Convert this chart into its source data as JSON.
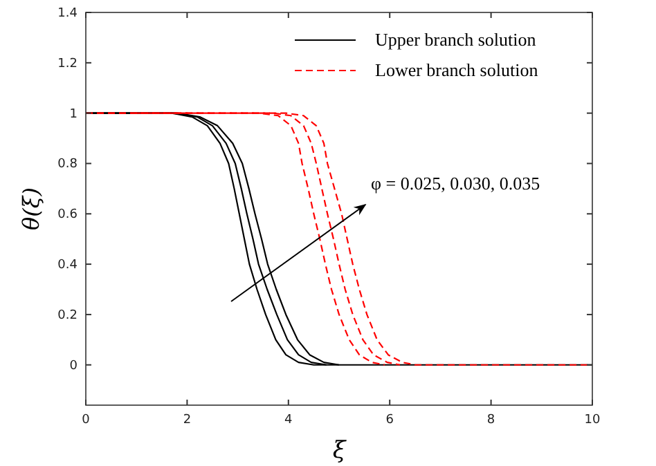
{
  "chart_data": {
    "type": "line",
    "xlabel": "ξ",
    "ylabel": "θ(ξ)",
    "xlim": [
      0,
      10
    ],
    "ylim": [
      -0.16,
      1.4
    ],
    "xticks": [
      0,
      2,
      4,
      6,
      8,
      10
    ],
    "yticks": [
      0,
      0.2,
      0.4,
      0.6,
      0.8,
      1,
      1.2,
      1.4
    ],
    "grid": false,
    "legend": "top right",
    "marker": "none",
    "annotations": [
      "φ = 0.025, 0.030, 0.035"
    ],
    "series": [
      {
        "name": "Upper branch solution",
        "color": "#000000",
        "line_style": "solid",
        "x": [
          0,
          1.7,
          2.1,
          2.4,
          2.65,
          2.82,
          2.93,
          3.03,
          3.13,
          3.23,
          3.38,
          3.55,
          3.75,
          3.95,
          4.2,
          4.5,
          10
        ],
        "values": [
          1,
          1,
          0.985,
          0.95,
          0.88,
          0.8,
          0.7,
          0.6,
          0.5,
          0.4,
          0.3,
          0.2,
          0.1,
          0.04,
          0.01,
          0,
          0
        ]
      },
      {
        "color": "#000000",
        "line_style": "solid",
        "x": [
          0,
          1.75,
          2.2,
          2.5,
          2.77,
          2.95,
          3.07,
          3.18,
          3.3,
          3.41,
          3.58,
          3.77,
          3.98,
          4.2,
          4.45,
          4.75
        ],
        "values": [
          1,
          1,
          0.985,
          0.95,
          0.88,
          0.8,
          0.7,
          0.6,
          0.5,
          0.4,
          0.3,
          0.2,
          0.1,
          0.04,
          0.01,
          0
        ]
      },
      {
        "color": "#000000",
        "line_style": "solid",
        "x": [
          0,
          1.8,
          2.25,
          2.6,
          2.9,
          3.09,
          3.22,
          3.34,
          3.47,
          3.59,
          3.76,
          3.95,
          4.18,
          4.42,
          4.7,
          5
        ],
        "values": [
          1,
          1,
          0.985,
          0.95,
          0.88,
          0.8,
          0.7,
          0.6,
          0.5,
          0.4,
          0.3,
          0.2,
          0.1,
          0.04,
          0.01,
          0
        ]
      },
      {
        "name": "Lower branch solution",
        "color": "#ff0000",
        "line_style": "dashed",
        "x": [
          0,
          3.4,
          3.8,
          4.05,
          4.2,
          4.27,
          4.39,
          4.5,
          4.62,
          4.73,
          4.85,
          5,
          5.2,
          5.4,
          5.65,
          5.9
        ],
        "values": [
          1,
          1,
          0.99,
          0.95,
          0.88,
          0.8,
          0.7,
          0.6,
          0.5,
          0.4,
          0.3,
          0.2,
          0.1,
          0.04,
          0.01,
          0
        ]
      },
      {
        "color": "#ff0000",
        "line_style": "dashed",
        "x": [
          0,
          3.7,
          4.05,
          4.3,
          4.45,
          4.55,
          4.66,
          4.77,
          4.89,
          5,
          5.12,
          5.27,
          5.47,
          5.68,
          5.95,
          6.2
        ],
        "values": [
          1,
          1,
          0.99,
          0.95,
          0.88,
          0.8,
          0.7,
          0.6,
          0.5,
          0.4,
          0.3,
          0.2,
          0.1,
          0.04,
          0.01,
          0
        ]
      },
      {
        "color": "#ff0000",
        "line_style": "dashed",
        "x": [
          1,
          3.95,
          4.3,
          4.55,
          4.7,
          4.77,
          4.91,
          5.05,
          5.16,
          5.27,
          5.4,
          5.55,
          5.75,
          5.97,
          6.25,
          6.5,
          10
        ],
        "values": [
          1,
          1,
          0.99,
          0.95,
          0.88,
          0.8,
          0.7,
          0.6,
          0.5,
          0.4,
          0.3,
          0.2,
          0.1,
          0.04,
          0.01,
          0,
          0
        ]
      }
    ]
  }
}
